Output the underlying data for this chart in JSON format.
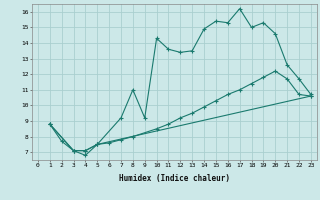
{
  "xlabel": "Humidex (Indice chaleur)",
  "bg_color": "#cce8e8",
  "grid_color": "#aacfcf",
  "line_color": "#1a7a6e",
  "xlim": [
    -0.5,
    23.5
  ],
  "ylim": [
    6.5,
    16.5
  ],
  "xticks": [
    0,
    1,
    2,
    3,
    4,
    5,
    6,
    7,
    8,
    9,
    10,
    11,
    12,
    13,
    14,
    15,
    16,
    17,
    18,
    19,
    20,
    21,
    22,
    23
  ],
  "yticks": [
    7,
    8,
    9,
    10,
    11,
    12,
    13,
    14,
    15,
    16
  ],
  "line1": {
    "x": [
      1,
      2,
      3,
      4,
      5,
      7,
      8,
      9,
      10,
      11,
      12,
      13,
      14,
      15,
      16,
      17,
      18,
      19,
      20,
      21,
      22,
      23
    ],
    "y": [
      8.8,
      7.7,
      7.1,
      6.8,
      7.5,
      9.2,
      11.0,
      9.2,
      14.3,
      13.6,
      13.4,
      13.5,
      14.9,
      15.4,
      15.3,
      16.2,
      15.0,
      15.3,
      14.6,
      12.6,
      11.7,
      10.7
    ]
  },
  "line2": {
    "x": [
      1,
      3,
      4,
      5,
      6,
      7,
      8,
      10,
      11,
      12,
      13,
      14,
      15,
      16,
      17,
      18,
      19,
      20,
      21,
      22,
      23
    ],
    "y": [
      8.8,
      7.1,
      7.1,
      7.5,
      7.6,
      7.8,
      8.0,
      8.5,
      8.8,
      9.2,
      9.5,
      9.9,
      10.3,
      10.7,
      11.0,
      11.4,
      11.8,
      12.2,
      11.7,
      10.7,
      10.6
    ]
  },
  "line3": {
    "x": [
      1,
      3,
      4,
      5,
      23
    ],
    "y": [
      8.8,
      7.1,
      7.1,
      7.5,
      10.6
    ]
  }
}
